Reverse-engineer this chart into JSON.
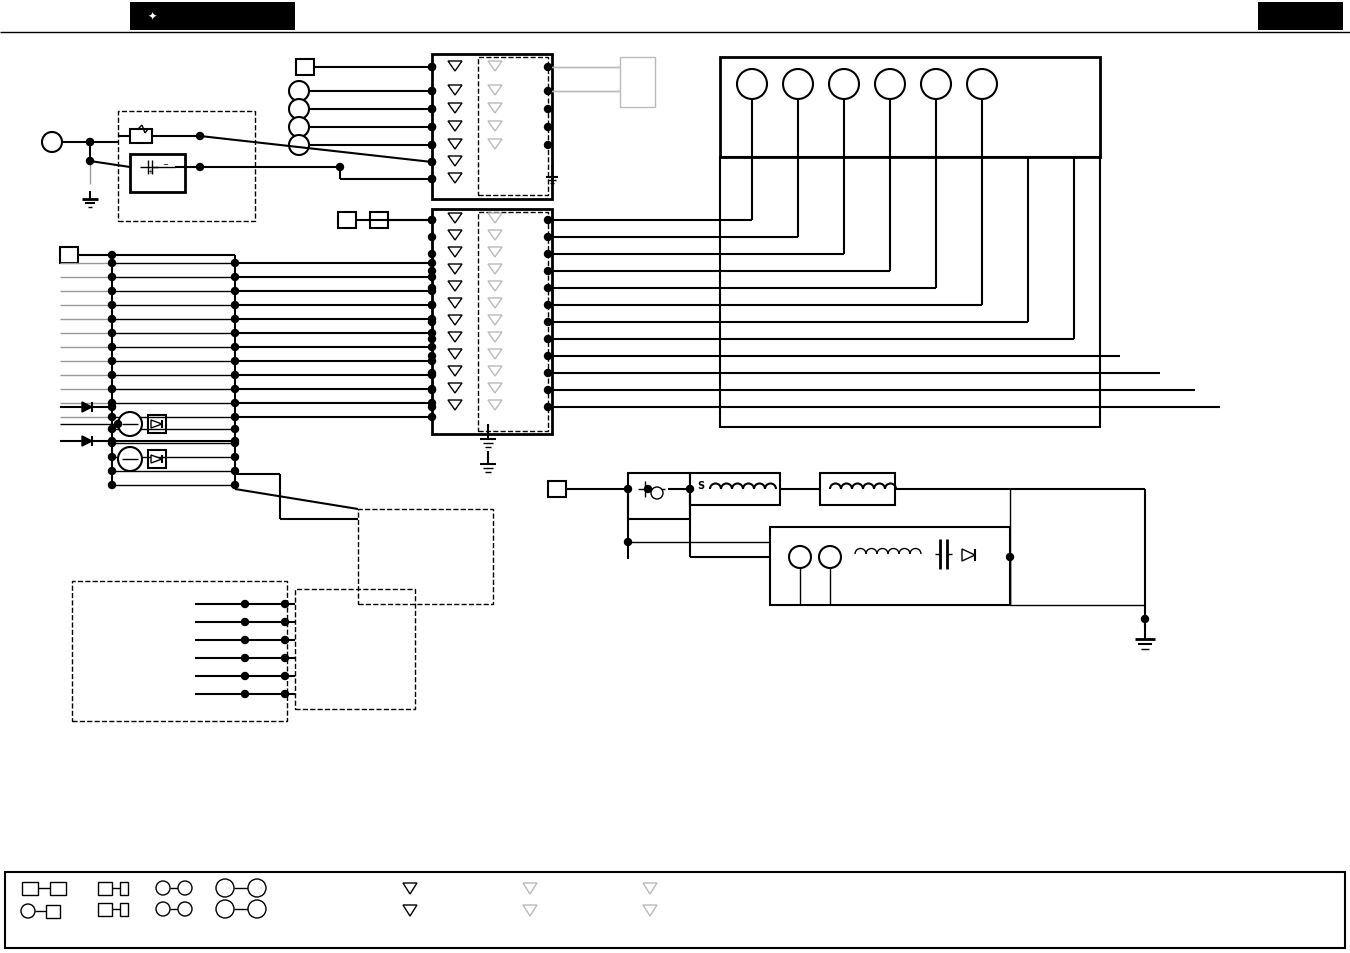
{
  "bg_color": "#ffffff",
  "line_color": "#000000",
  "header_bar_color": "#1a1a1a",
  "fig_width": 13.5,
  "fig_height": 9.54,
  "dpi": 100,
  "lgray": "#bbbbbb"
}
